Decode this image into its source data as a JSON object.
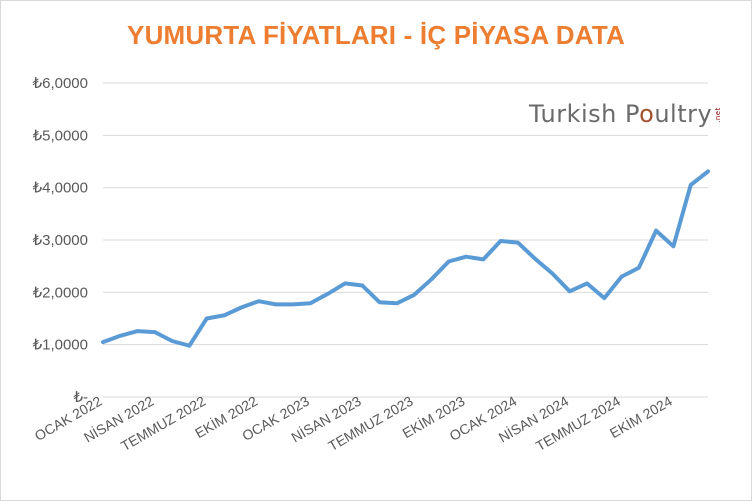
{
  "title": "YUMURTA FİYATLARI - İÇ PİYASA DATA",
  "logo": {
    "text_a": "Turkish P",
    "text_o": "o",
    "text_b": "ultry",
    "text_sub": ".net"
  },
  "colors": {
    "title": "#ed7d31",
    "line": "#5b9bd5",
    "grid": "#d9d9d9",
    "axis_text": "#595959"
  },
  "chart_data": {
    "type": "line",
    "title": "YUMURTA FİYATLARI - İÇ PİYASA DATA",
    "xlabel": "",
    "ylabel": "",
    "ylim": [
      0,
      6
    ],
    "yticks": [
      {
        "value": 0,
        "label": "₺-"
      },
      {
        "value": 1,
        "label": "₺1,0000"
      },
      {
        "value": 2,
        "label": "₺2,0000"
      },
      {
        "value": 3,
        "label": "₺3,0000"
      },
      {
        "value": 4,
        "label": "₺4,0000"
      },
      {
        "value": 5,
        "label": "₺5,0000"
      },
      {
        "value": 6,
        "label": "₺6,0000"
      }
    ],
    "grid": true,
    "legend": "none",
    "x_tick_labels": [
      {
        "index": 0,
        "label": "OCAK 2022"
      },
      {
        "index": 3,
        "label": "NİSAN 2022"
      },
      {
        "index": 6,
        "label": "TEMMUZ 2022"
      },
      {
        "index": 9,
        "label": "EKİM 2022"
      },
      {
        "index": 12,
        "label": "OCAK 2023"
      },
      {
        "index": 15,
        "label": "NİSAN 2023"
      },
      {
        "index": 18,
        "label": "TEMMUZ 2023"
      },
      {
        "index": 21,
        "label": "EKİM 2023"
      },
      {
        "index": 24,
        "label": "OCAK 2024"
      },
      {
        "index": 27,
        "label": "NİSAN 2024"
      },
      {
        "index": 30,
        "label": "TEMMUZ 2024"
      },
      {
        "index": 33,
        "label": "EKİM 2024"
      }
    ],
    "values": [
      1.05,
      1.17,
      1.26,
      1.24,
      1.07,
      0.98,
      1.5,
      1.56,
      1.71,
      1.83,
      1.77,
      1.77,
      1.79,
      1.97,
      2.17,
      2.13,
      1.81,
      1.79,
      1.95,
      2.25,
      2.59,
      2.68,
      2.63,
      2.98,
      2.95,
      2.64,
      2.36,
      2.02,
      2.17,
      1.89,
      2.3,
      2.47,
      3.18,
      2.88,
      4.05,
      4.31
    ]
  }
}
